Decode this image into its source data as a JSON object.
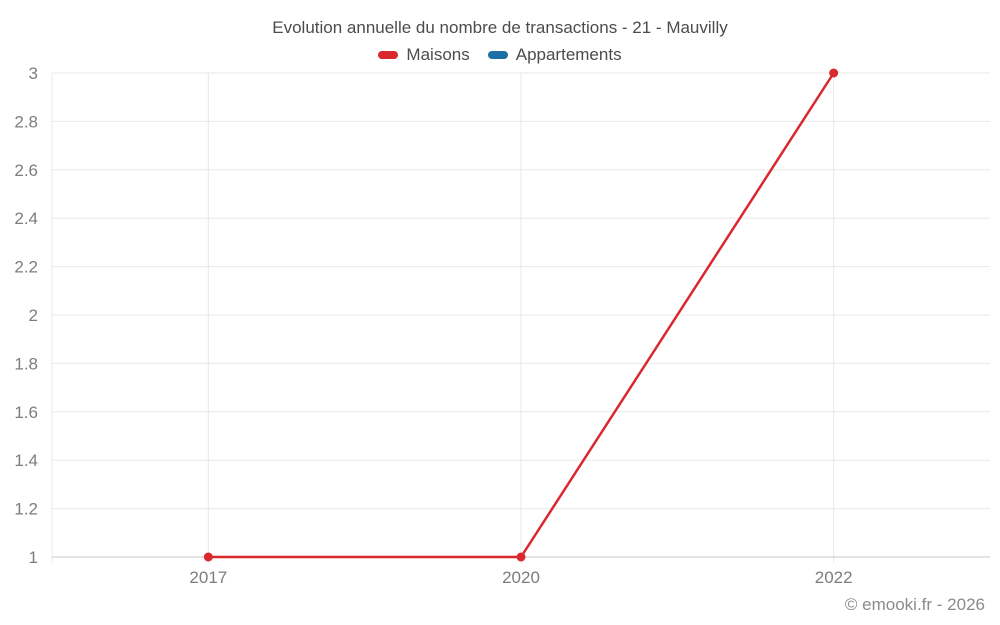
{
  "header": {
    "title": "Evolution annuelle du nombre de transactions - 21 - Mauvilly"
  },
  "legend": {
    "items": [
      {
        "label": "Maisons",
        "color": "#d9282e"
      },
      {
        "label": "Appartements",
        "color": "#1c6fa5"
      }
    ]
  },
  "footer": {
    "copyright": "© emooki.fr - 2026"
  },
  "chart_data": {
    "type": "line",
    "title": "Evolution annuelle du nombre de transactions - 21 - Mauvilly",
    "categories": [
      "2017",
      "2020",
      "2022"
    ],
    "series": [
      {
        "name": "Maisons",
        "color": "#d9282e",
        "values": [
          1,
          1,
          3
        ]
      },
      {
        "name": "Appartements",
        "color": "#1c6fa5",
        "values": []
      }
    ],
    "xlabel": "",
    "ylabel": "",
    "ylim": [
      1,
      3
    ],
    "y_ticks": [
      1,
      1.2,
      1.4,
      1.6,
      1.8,
      2,
      2.2,
      2.4,
      2.6,
      2.8,
      3
    ],
    "grid": true,
    "legend_position": "top",
    "gridline_color": "#e8e8e8",
    "axis_color": "#c9c9c9",
    "tick_label_color": "#7d7d7d"
  }
}
